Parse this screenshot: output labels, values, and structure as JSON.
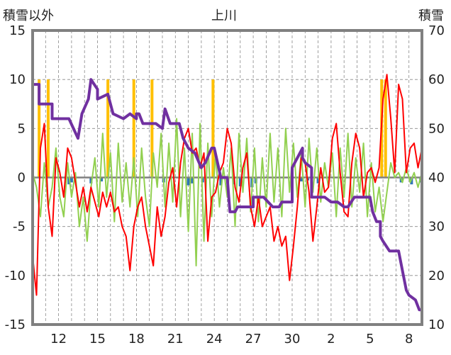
{
  "chart_data": {
    "type": "line",
    "title": "上川",
    "y_left_label": "積雪以外",
    "y_right_label": "積雪",
    "ylim_left": [
      -15,
      15
    ],
    "ylim_right": [
      10,
      70
    ],
    "y_left_ticks": [
      "15",
      "10",
      "5",
      "0",
      "-5",
      "-10",
      "-15"
    ],
    "y_right_ticks": [
      "70",
      "60",
      "50",
      "40",
      "30",
      "20",
      "10"
    ],
    "x_tick_labels": [
      "12",
      "15",
      "18",
      "21",
      "24",
      "27",
      "30",
      "2",
      "5",
      "8"
    ],
    "x_range_days": [
      10,
      40
    ],
    "x_tick_positions_days": [
      12,
      15,
      18,
      21,
      24,
      27,
      30,
      33,
      36,
      39
    ],
    "grid": true,
    "colors": {
      "temperature": "#ff0000",
      "wind": "#92d050",
      "snow_depth": "#7030a0",
      "snowfall": "#ffc000",
      "precipitation": "#2e75b6",
      "zero_line": "#808080",
      "frame": "#808080"
    },
    "series": [
      {
        "key": "temperature",
        "axis": "left",
        "values": [
          [
            10.0,
            -8.0
          ],
          [
            10.3,
            -12.0
          ],
          [
            10.6,
            3.0
          ],
          [
            10.9,
            5.5
          ],
          [
            11.2,
            -3.0
          ],
          [
            11.5,
            -6.0
          ],
          [
            11.8,
            2.0
          ],
          [
            12.1,
            0.5
          ],
          [
            12.4,
            -2.0
          ],
          [
            12.7,
            3.0
          ],
          [
            13.0,
            2.0
          ],
          [
            13.3,
            -0.5
          ],
          [
            13.6,
            -3.0
          ],
          [
            13.9,
            -1.0
          ],
          [
            14.2,
            -3.5
          ],
          [
            14.5,
            -1.0
          ],
          [
            14.8,
            -2.5
          ],
          [
            15.1,
            -4.0
          ],
          [
            15.4,
            -1.5
          ],
          [
            15.7,
            -3.0
          ],
          [
            16.0,
            -1.5
          ],
          [
            16.3,
            -3.5
          ],
          [
            16.6,
            -3.0
          ],
          [
            16.9,
            -5.0
          ],
          [
            17.2,
            -6.0
          ],
          [
            17.5,
            -9.5
          ],
          [
            17.8,
            -5.0
          ],
          [
            18.1,
            -3.0
          ],
          [
            18.4,
            -2.0
          ],
          [
            18.7,
            -5.0
          ],
          [
            19.0,
            -7.0
          ],
          [
            19.3,
            -9.0
          ],
          [
            19.6,
            -3.0
          ],
          [
            19.9,
            -6.0
          ],
          [
            20.2,
            -4.0
          ],
          [
            20.5,
            -0.5
          ],
          [
            20.8,
            1.0
          ],
          [
            21.1,
            -3.0
          ],
          [
            21.4,
            1.5
          ],
          [
            21.7,
            4.0
          ],
          [
            22.0,
            5.0
          ],
          [
            22.3,
            2.5
          ],
          [
            22.6,
            3.0
          ],
          [
            22.9,
            1.0
          ],
          [
            23.2,
            2.5
          ],
          [
            23.5,
            -6.5
          ],
          [
            23.8,
            -2.0
          ],
          [
            24.1,
            -1.5
          ],
          [
            24.4,
            0.5
          ],
          [
            24.7,
            1.5
          ],
          [
            25.0,
            5.0
          ],
          [
            25.3,
            3.5
          ],
          [
            25.6,
            -1.0
          ],
          [
            25.9,
            -2.5
          ],
          [
            26.2,
            1.0
          ],
          [
            26.5,
            2.5
          ],
          [
            26.8,
            -3.0
          ],
          [
            27.1,
            -5.0
          ],
          [
            27.4,
            -2.0
          ],
          [
            27.7,
            -5.0
          ],
          [
            28.0,
            -4.0
          ],
          [
            28.3,
            -3.0
          ],
          [
            28.6,
            -6.5
          ],
          [
            28.9,
            -5.0
          ],
          [
            29.2,
            -7.0
          ],
          [
            29.5,
            -6.0
          ],
          [
            29.8,
            -10.5
          ],
          [
            30.1,
            -7.0
          ],
          [
            30.4,
            -3.0
          ],
          [
            30.7,
            2.0
          ],
          [
            31.0,
            1.5
          ],
          [
            31.3,
            -1.5
          ],
          [
            31.6,
            -6.5
          ],
          [
            31.9,
            -3.0
          ],
          [
            32.2,
            1.0
          ],
          [
            32.5,
            -1.5
          ],
          [
            32.8,
            -1.0
          ],
          [
            33.1,
            4.0
          ],
          [
            33.4,
            5.5
          ],
          [
            33.7,
            0.5
          ],
          [
            34.0,
            -3.5
          ],
          [
            34.3,
            -4.0
          ],
          [
            34.6,
            1.5
          ],
          [
            34.9,
            4.5
          ],
          [
            35.2,
            3.0
          ],
          [
            35.5,
            -2.0
          ],
          [
            35.8,
            0.5
          ],
          [
            36.1,
            1.0
          ],
          [
            36.4,
            -0.5
          ],
          [
            36.7,
            1.0
          ],
          [
            37.0,
            8.0
          ],
          [
            37.3,
            10.5
          ],
          [
            37.6,
            6.0
          ],
          [
            37.9,
            0.5
          ],
          [
            38.2,
            9.5
          ],
          [
            38.5,
            8.0
          ],
          [
            38.8,
            0.5
          ],
          [
            39.1,
            3.0
          ],
          [
            39.4,
            3.5
          ],
          [
            39.7,
            1.0
          ],
          [
            40.0,
            3.0
          ]
        ]
      },
      {
        "key": "wind",
        "axis": "left",
        "values": [
          [
            10.0,
            0.5
          ],
          [
            10.3,
            -1.0
          ],
          [
            10.6,
            -4.0
          ],
          [
            10.9,
            1.5
          ],
          [
            11.2,
            -3.0
          ],
          [
            11.5,
            -1.0
          ],
          [
            11.8,
            3.0
          ],
          [
            12.1,
            -2.0
          ],
          [
            12.4,
            -4.0
          ],
          [
            12.7,
            1.5
          ],
          [
            13.0,
            -2.0
          ],
          [
            13.3,
            0.5
          ],
          [
            13.6,
            -5.0
          ],
          [
            13.9,
            -2.0
          ],
          [
            14.2,
            -6.5
          ],
          [
            14.5,
            -1.0
          ],
          [
            14.8,
            2.0
          ],
          [
            15.1,
            -3.0
          ],
          [
            15.4,
            4.5
          ],
          [
            15.7,
            -2.0
          ],
          [
            16.0,
            2.5
          ],
          [
            16.3,
            -4.5
          ],
          [
            16.6,
            3.5
          ],
          [
            16.9,
            -2.5
          ],
          [
            17.2,
            1.5
          ],
          [
            17.5,
            -3.0
          ],
          [
            17.8,
            2.0
          ],
          [
            18.1,
            -4.0
          ],
          [
            18.4,
            3.0
          ],
          [
            18.7,
            -2.0
          ],
          [
            19.0,
            -5.0
          ],
          [
            19.3,
            2.5
          ],
          [
            19.6,
            -1.0
          ],
          [
            19.9,
            4.5
          ],
          [
            20.2,
            -3.0
          ],
          [
            20.5,
            3.5
          ],
          [
            20.8,
            -2.5
          ],
          [
            21.1,
            6.0
          ],
          [
            21.4,
            -4.0
          ],
          [
            21.7,
            3.0
          ],
          [
            22.0,
            -5.5
          ],
          [
            22.3,
            4.5
          ],
          [
            22.6,
            -9.0
          ],
          [
            22.9,
            5.5
          ],
          [
            23.2,
            -6.5
          ],
          [
            23.5,
            3.5
          ],
          [
            23.8,
            -4.0
          ],
          [
            24.1,
            2.5
          ],
          [
            24.4,
            -3.0
          ],
          [
            24.7,
            1.0
          ],
          [
            25.0,
            -2.0
          ],
          [
            25.3,
            3.0
          ],
          [
            25.6,
            -5.0
          ],
          [
            25.9,
            4.5
          ],
          [
            26.2,
            -1.5
          ],
          [
            26.5,
            4.0
          ],
          [
            26.8,
            -3.5
          ],
          [
            27.1,
            3.0
          ],
          [
            27.4,
            -4.5
          ],
          [
            27.7,
            2.0
          ],
          [
            28.0,
            -3.0
          ],
          [
            28.3,
            4.5
          ],
          [
            28.6,
            -2.5
          ],
          [
            28.9,
            3.0
          ],
          [
            29.2,
            -4.0
          ],
          [
            29.5,
            5.0
          ],
          [
            29.8,
            -1.5
          ],
          [
            30.1,
            3.5
          ],
          [
            30.4,
            -2.0
          ],
          [
            30.7,
            2.5
          ],
          [
            31.0,
            -3.0
          ],
          [
            31.3,
            4.0
          ],
          [
            31.6,
            -1.5
          ],
          [
            31.9,
            3.0
          ],
          [
            32.2,
            -2.5
          ],
          [
            32.5,
            1.5
          ],
          [
            32.8,
            -1.0
          ],
          [
            33.1,
            2.5
          ],
          [
            33.4,
            -4.0
          ],
          [
            33.7,
            3.0
          ],
          [
            34.0,
            -2.0
          ],
          [
            34.3,
            4.5
          ],
          [
            34.6,
            -3.0
          ],
          [
            34.9,
            2.0
          ],
          [
            35.2,
            -1.5
          ],
          [
            35.5,
            3.5
          ],
          [
            35.8,
            -4.0
          ],
          [
            36.1,
            1.5
          ],
          [
            36.4,
            -3.5
          ],
          [
            36.7,
            -1.0
          ],
          [
            37.0,
            -4.5
          ],
          [
            37.3,
            -1.5
          ],
          [
            37.6,
            1.5
          ],
          [
            37.9,
            0.0
          ],
          [
            38.2,
            0.5
          ],
          [
            38.5,
            -0.5
          ],
          [
            38.8,
            1.0
          ],
          [
            39.1,
            -0.5
          ],
          [
            39.4,
            0.5
          ],
          [
            39.7,
            -1.0
          ],
          [
            40.0,
            0.5
          ]
        ]
      },
      {
        "key": "snow_depth",
        "axis": "right",
        "values": [
          [
            10.0,
            59
          ],
          [
            10.5,
            59
          ],
          [
            10.5,
            55
          ],
          [
            11.5,
            55
          ],
          [
            11.5,
            52
          ],
          [
            12.8,
            52
          ],
          [
            13.5,
            48
          ],
          [
            13.8,
            53
          ],
          [
            14.3,
            56
          ],
          [
            14.5,
            60
          ],
          [
            15.0,
            58
          ],
          [
            15.0,
            56
          ],
          [
            15.8,
            57
          ],
          [
            16.2,
            53
          ],
          [
            17.0,
            52
          ],
          [
            17.5,
            53
          ],
          [
            18.0,
            52
          ],
          [
            18.0,
            53
          ],
          [
            18.2,
            53
          ],
          [
            18.5,
            51
          ],
          [
            19.5,
            51
          ],
          [
            20.0,
            50
          ],
          [
            20.2,
            54
          ],
          [
            20.6,
            51
          ],
          [
            21.3,
            51
          ],
          [
            21.6,
            48
          ],
          [
            22.0,
            46
          ],
          [
            22.5,
            45
          ],
          [
            23.0,
            42
          ],
          [
            23.3,
            43
          ],
          [
            23.8,
            46
          ],
          [
            24.0,
            46
          ],
          [
            24.0,
            46
          ],
          [
            24.5,
            40
          ],
          [
            25.0,
            40
          ],
          [
            25.2,
            33
          ],
          [
            25.6,
            33
          ],
          [
            25.8,
            34
          ],
          [
            27.0,
            34
          ],
          [
            27.0,
            36
          ],
          [
            27.8,
            36
          ],
          [
            28.5,
            34
          ],
          [
            29.0,
            34
          ],
          [
            29.2,
            35
          ],
          [
            30.0,
            35
          ],
          [
            30.0,
            42
          ],
          [
            30.8,
            46
          ],
          [
            30.8,
            44
          ],
          [
            31.0,
            43
          ],
          [
            31.5,
            42
          ],
          [
            31.5,
            36
          ],
          [
            32.5,
            36
          ],
          [
            33.0,
            35
          ],
          [
            33.5,
            35
          ],
          [
            34.0,
            34
          ],
          [
            34.3,
            34
          ],
          [
            34.8,
            36
          ],
          [
            35.5,
            36
          ],
          [
            36.0,
            36
          ],
          [
            36.2,
            33
          ],
          [
            36.5,
            31
          ],
          [
            36.8,
            31
          ],
          [
            36.8,
            28
          ],
          [
            37.0,
            27
          ],
          [
            37.5,
            25
          ],
          [
            38.2,
            25
          ],
          [
            38.5,
            21
          ],
          [
            38.8,
            17
          ],
          [
            39.0,
            16
          ],
          [
            39.5,
            15
          ],
          [
            39.8,
            13
          ],
          [
            40.0,
            13
          ]
        ]
      },
      {
        "key": "snowfall",
        "axis": "left",
        "bars": [
          [
            10.5,
            10
          ],
          [
            11.2,
            10
          ],
          [
            15.8,
            10
          ],
          [
            17.8,
            10
          ],
          [
            19.2,
            10
          ],
          [
            23.9,
            10
          ],
          [
            36.9,
            10
          ],
          [
            37.2,
            10
          ]
        ]
      },
      {
        "key": "precipitation",
        "axis": "left",
        "bars": [
          [
            12.8,
            -0.7
          ],
          [
            13.0,
            -0.5
          ],
          [
            14.5,
            -0.6
          ],
          [
            15.3,
            -0.4
          ],
          [
            20.1,
            -0.5
          ],
          [
            22.0,
            -0.8
          ],
          [
            22.3,
            -0.6
          ],
          [
            23.1,
            -0.5
          ],
          [
            24.5,
            -0.8
          ],
          [
            25.5,
            -0.7
          ],
          [
            26.0,
            -0.9
          ],
          [
            26.9,
            -1.0
          ],
          [
            27.2,
            -0.6
          ],
          [
            30.7,
            -0.4
          ],
          [
            31.2,
            -0.3
          ],
          [
            32.0,
            -0.6
          ],
          [
            38.4,
            -0.5
          ],
          [
            39.2,
            -0.7
          ],
          [
            39.9,
            -0.5
          ]
        ]
      }
    ]
  }
}
